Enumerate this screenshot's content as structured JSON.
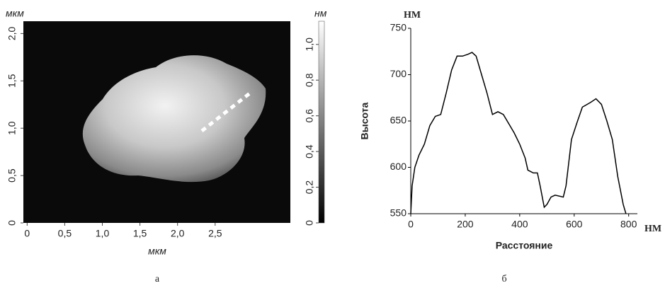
{
  "chart_data": [
    {
      "type": "image",
      "xlabel": "мкм",
      "ylabel": "мкм",
      "colorbar_label": "нм",
      "caption": "а",
      "xlim": [
        -0.05,
        3.5
      ],
      "ylim": [
        0,
        2.13
      ],
      "clim": [
        0,
        1.13
      ],
      "xticks": [
        0,
        {
          "value": 0.5,
          "label": "0,5"
        },
        {
          "value": 1.0,
          "label": "1,0"
        },
        {
          "value": 1.5,
          "label": "1,5"
        },
        {
          "value": 2.0,
          "label": "2,0"
        },
        {
          "value": 2.5,
          "label": "2,5"
        }
      ],
      "yticks": [
        0,
        {
          "value": 0.5,
          "label": "0,5"
        },
        {
          "value": 1.0,
          "label": "1,0"
        },
        {
          "value": 1.5,
          "label": "1,5"
        },
        {
          "value": 2.0,
          "label": "2,0"
        }
      ],
      "cticks": [
        0,
        {
          "value": 0.2,
          "label": "0,2"
        },
        {
          "value": 0.4,
          "label": "0,4"
        },
        {
          "value": 0.6,
          "label": "0,6"
        },
        {
          "value": 0.8,
          "label": "0,8"
        },
        {
          "value": 1.0,
          "label": "1,0"
        }
      ]
    },
    {
      "type": "line",
      "ylabel": "Высота",
      "yunit": "НМ",
      "xlabel": "Расстояние",
      "xunit": "НМ",
      "caption": "б",
      "color": "#000000",
      "xlim": [
        0,
        832
      ],
      "ylim": [
        550,
        750
      ],
      "xticks": [
        0,
        200,
        400,
        600,
        800
      ],
      "yticks": [
        550,
        600,
        650,
        700,
        750
      ],
      "x": [
        0,
        5,
        15,
        30,
        50,
        70,
        90,
        110,
        130,
        150,
        170,
        190,
        210,
        225,
        240,
        260,
        280,
        300,
        320,
        340,
        360,
        380,
        400,
        420,
        430,
        450,
        465,
        475,
        490,
        500,
        515,
        530,
        560,
        570,
        590,
        610,
        630,
        660,
        680,
        700,
        720,
        740,
        760,
        780,
        790
      ],
      "values": [
        550,
        580,
        600,
        613,
        625,
        645,
        655,
        657,
        680,
        705,
        720,
        720,
        722,
        724,
        720,
        700,
        680,
        657,
        660,
        657,
        647,
        637,
        625,
        610,
        597,
        594,
        594,
        580,
        557,
        560,
        568,
        570,
        568,
        580,
        630,
        648,
        665,
        670,
        674,
        668,
        650,
        630,
        590,
        560,
        550
      ]
    }
  ]
}
